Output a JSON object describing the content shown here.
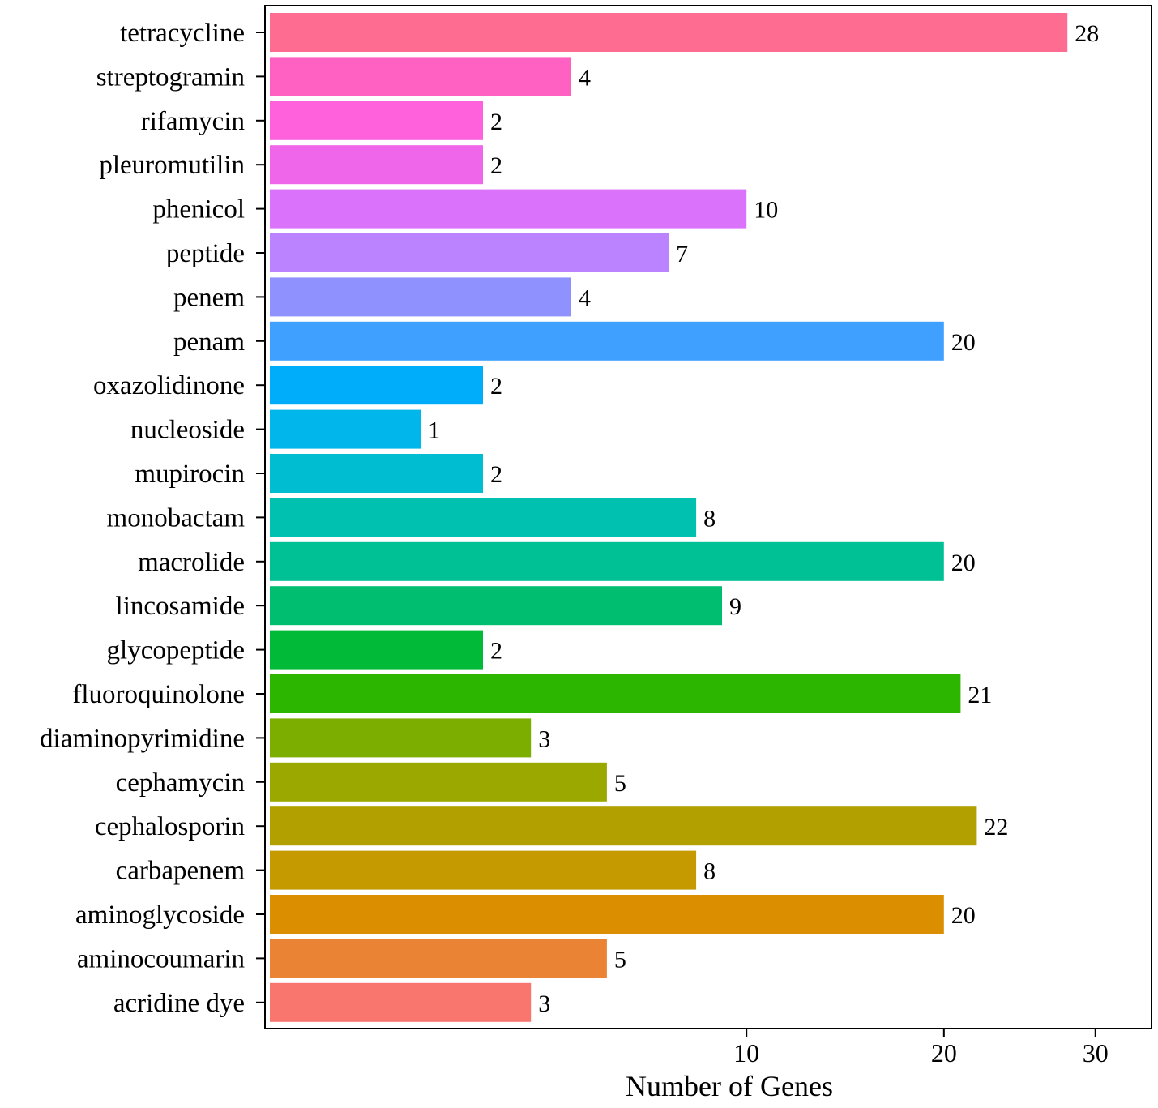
{
  "chart_data": {
    "type": "bar",
    "orientation": "horizontal",
    "xlabel": "Number of Genes",
    "ylabel": "",
    "title": "",
    "x_scale": "sqrt",
    "xlim": [
      0,
      32.5
    ],
    "xticks": [
      10,
      20,
      30
    ],
    "xtick_labels": [
      "10",
      "20",
      "30"
    ],
    "grid": false,
    "legend": "none",
    "categories": [
      "tetracycline",
      "streptogramin",
      "rifamycin",
      "pleuromutilin",
      "phenicol",
      "peptide",
      "penem",
      "penam",
      "oxazolidinone",
      "nucleoside",
      "mupirocin",
      "monobactam",
      "macrolide",
      "lincosamide",
      "glycopeptide",
      "fluoroquinolone",
      "diaminopyrimidine",
      "cephamycin",
      "cephalosporin",
      "carbapenem",
      "aminoglycoside",
      "aminocoumarin",
      "acridine dye"
    ],
    "values": [
      28,
      4,
      2,
      2,
      10,
      7,
      4,
      20,
      2,
      1,
      2,
      8,
      20,
      9,
      2,
      21,
      3,
      5,
      22,
      8,
      20,
      5,
      3
    ],
    "value_labels": [
      "28",
      "4",
      "2",
      "2",
      "10",
      "7",
      "4",
      "20",
      "2",
      "1",
      "2",
      "8",
      "20",
      "9",
      "2",
      "21",
      "3",
      "5",
      "22",
      "8",
      "20",
      "5",
      "3"
    ],
    "colors": [
      "#FF6C91",
      "#FF61C3",
      "#FF61DD",
      "#F066EA",
      "#DB72FB",
      "#BB83FF",
      "#8F91FF",
      "#3FA0FF",
      "#00ADFA",
      "#00B6EB",
      "#00BDD2",
      "#00C0AF",
      "#00C196",
      "#00BE70",
      "#00BA38",
      "#2DB600",
      "#7CAE00",
      "#9AA800",
      "#B2A000",
      "#C59900",
      "#DB8E00",
      "#EB8335",
      "#F8766D"
    ]
  }
}
